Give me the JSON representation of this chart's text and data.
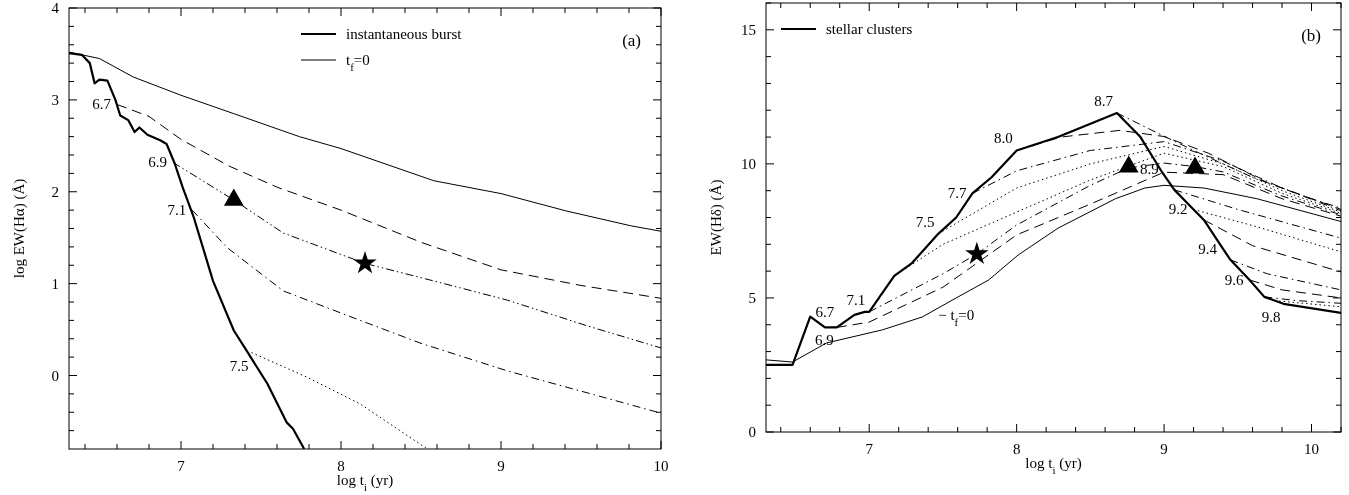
{
  "chart_data": [
    {
      "type": "line",
      "title": "(a)",
      "xlabel": "log t$_{i}$ (yr)",
      "ylabel": "log EW(Hα)   (Å)",
      "xlim": [
        6.3,
        10
      ],
      "ylim": [
        -0.8,
        4
      ],
      "xticks": [
        {
          "value": 6.4,
          "label": null
        },
        {
          "value": 6.6,
          "label": null
        },
        {
          "value": 6.8,
          "label": null
        },
        7,
        {
          "value": 7.2,
          "label": null
        },
        {
          "value": 7.4,
          "label": null
        },
        {
          "value": 7.6,
          "label": null
        },
        {
          "value": 7.8,
          "label": null
        },
        8,
        {
          "value": 8.2,
          "label": null
        },
        {
          "value": 8.4,
          "label": null
        },
        {
          "value": 8.6,
          "label": null
        },
        {
          "value": 8.8,
          "label": null
        },
        9,
        {
          "value": 9.2,
          "label": null
        },
        {
          "value": 9.4,
          "label": null
        },
        {
          "value": 9.6,
          "label": null
        },
        {
          "value": 9.8,
          "label": null
        },
        10
      ],
      "yticks": [
        {
          "value": -0.6,
          "label": null
        },
        {
          "value": -0.4,
          "label": null
        },
        {
          "value": -0.2,
          "label": null
        },
        0,
        {
          "value": 0.2,
          "label": null
        },
        {
          "value": 0.4,
          "label": null
        },
        {
          "value": 0.6,
          "label": null
        },
        {
          "value": 0.8,
          "label": null
        },
        1,
        {
          "value": 1.2,
          "label": null
        },
        {
          "value": 1.4,
          "label": null
        },
        {
          "value": 1.6,
          "label": null
        },
        {
          "value": 1.8,
          "label": null
        },
        2,
        {
          "value": 2.2,
          "label": null
        },
        {
          "value": 2.4,
          "label": null
        },
        {
          "value": 2.6,
          "label": null
        },
        {
          "value": 2.8,
          "label": null
        },
        3,
        {
          "value": 3.2,
          "label": null
        },
        {
          "value": 3.4,
          "label": null
        },
        {
          "value": 3.6,
          "label": null
        },
        {
          "value": 3.8,
          "label": null
        },
        4
      ],
      "legend": "top right",
      "grid": false,
      "series": [
        {
          "name": "instantaneous burst",
          "color": "#000000",
          "line_style": "solid",
          "x": [
            6.3,
            6.38,
            6.43,
            6.46,
            6.49,
            6.54,
            6.59,
            6.62,
            6.67,
            6.71,
            6.74,
            6.79,
            6.87,
            6.91,
            6.96,
            7.01,
            7.08,
            7.2,
            7.33,
            7.41,
            7.54,
            7.66,
            7.7,
            7.77
          ],
          "values": [
            3.51,
            3.49,
            3.4,
            3.18,
            3.22,
            3.21,
            3.0,
            2.83,
            2.78,
            2.65,
            2.7,
            2.62,
            2.56,
            2.52,
            2.31,
            2.05,
            1.72,
            1.03,
            0.49,
            0.27,
            -0.09,
            -0.51,
            -0.58,
            -0.8
          ]
        },
        {
          "name": "t$_{f}$=0",
          "color": "#000000",
          "line_style": "solid",
          "x": [
            6.3,
            6.49,
            6.7,
            7.0,
            7.33,
            7.74,
            8.0,
            8.58,
            9.0,
            9.41,
            9.81,
            10
          ],
          "values": [
            3.52,
            3.45,
            3.25,
            3.05,
            2.85,
            2.6,
            2.47,
            2.12,
            1.98,
            1.79,
            1.63,
            1.57
          ]
        },
        {
          "color": "#000000",
          "line_style": "dashed",
          "x": [
            6.6,
            6.8,
            7.0,
            7.3,
            7.6,
            8.0,
            8.5,
            9.0,
            9.5,
            10
          ],
          "values": [
            2.95,
            2.82,
            2.57,
            2.28,
            2.05,
            1.8,
            1.45,
            1.15,
            0.98,
            0.84
          ]
        },
        {
          "color": "#000000",
          "line_style": "dashdotdot",
          "x": [
            6.95,
            7.33,
            7.64,
            8.15,
            8.6,
            9.04,
            9.54,
            10
          ],
          "values": [
            2.32,
            1.91,
            1.55,
            1.22,
            1.02,
            0.82,
            0.54,
            0.3
          ]
        },
        {
          "color": "#000000",
          "line_style": "dashdot",
          "x": [
            7.07,
            7.29,
            7.64,
            8.12,
            8.5,
            9.04,
            9.5,
            10
          ],
          "values": [
            1.8,
            1.39,
            0.92,
            0.6,
            0.35,
            0.05,
            -0.17,
            -0.41
          ]
        },
        {
          "color": "#000000",
          "line_style": "dotted",
          "x": [
            7.44,
            7.79,
            8.12,
            8.54
          ],
          "values": [
            0.25,
            -0.02,
            -0.31,
            -0.8
          ]
        },
        {
          "type": "scatter",
          "marker": "triangle",
          "color": "#000000",
          "x": [
            7.33
          ],
          "values": [
            1.91
          ]
        },
        {
          "type": "scatter",
          "marker": "star",
          "color": "#000000",
          "x": [
            8.15
          ],
          "values": [
            1.22
          ]
        }
      ],
      "annotations": [
        {
          "text": "6.7",
          "x": 6.6,
          "y": 2.95
        },
        {
          "text": "6.9",
          "x": 6.95,
          "y": 2.32
        },
        {
          "text": "7.1",
          "x": 7.07,
          "y": 1.8
        },
        {
          "text": "7.5",
          "x": 7.44,
          "y": 0.25
        }
      ]
    },
    {
      "type": "line",
      "title": "(b)",
      "xlabel": "log t$_{i}$ (yr)",
      "ylabel": "EW(Hδ)   (Å)",
      "xlim": [
        6.3,
        10.2
      ],
      "ylim": [
        0,
        16
      ],
      "xticks": [
        {
          "value": 6.4,
          "label": null
        },
        {
          "value": 6.6,
          "label": null
        },
        {
          "value": 6.8,
          "label": null
        },
        7,
        {
          "value": 7.2,
          "label": null
        },
        {
          "value": 7.4,
          "label": null
        },
        {
          "value": 7.6,
          "label": null
        },
        {
          "value": 7.8,
          "label": null
        },
        8,
        {
          "value": 8.2,
          "label": null
        },
        {
          "value": 8.4,
          "label": null
        },
        {
          "value": 8.6,
          "label": null
        },
        {
          "value": 8.8,
          "label": null
        },
        9,
        {
          "value": 9.2,
          "label": null
        },
        {
          "value": 9.4,
          "label": null
        },
        {
          "value": 9.6,
          "label": null
        },
        {
          "value": 9.8,
          "label": null
        },
        10,
        {
          "value": 10.2,
          "label": null
        }
      ],
      "yticks": [
        0,
        {
          "value": 1,
          "label": null
        },
        {
          "value": 2,
          "label": null
        },
        {
          "value": 3,
          "label": null
        },
        {
          "value": 4,
          "label": null
        },
        5,
        {
          "value": 6,
          "label": null
        },
        {
          "value": 7,
          "label": null
        },
        {
          "value": 8,
          "label": null
        },
        {
          "value": 9,
          "label": null
        },
        10,
        {
          "value": 11,
          "label": null
        },
        {
          "value": 12,
          "label": null
        },
        {
          "value": 13,
          "label": null
        },
        {
          "value": 14,
          "label": null
        },
        15,
        {
          "value": 16,
          "label": null
        }
      ],
      "legend": "top left",
      "grid": false,
      "series": [
        {
          "name": "stellar clusters",
          "color": "#000000",
          "line_style": "solid",
          "x": [
            6.3,
            6.48,
            6.6,
            6.7,
            6.78,
            6.9,
            6.97,
            7.0,
            7.17,
            7.29,
            7.47,
            7.59,
            7.7,
            7.83,
            8.0,
            8.28,
            8.68,
            8.84,
            8.9,
            8.99,
            9.07,
            9.2,
            9.27,
            9.4,
            9.45,
            9.58,
            9.68,
            9.81,
            10.2
          ],
          "values": [
            2.5,
            2.5,
            4.3,
            3.9,
            3.9,
            4.37,
            4.48,
            4.48,
            5.82,
            6.3,
            7.4,
            8.0,
            8.9,
            9.5,
            10.5,
            11.0,
            11.9,
            11.0,
            10.46,
            9.66,
            9.03,
            8.3,
            7.91,
            6.83,
            6.42,
            5.67,
            5.04,
            4.78,
            4.44
          ]
        },
        {
          "color": "#000000",
          "line_style": "solid",
          "x": [
            6.3,
            6.48,
            6.71,
            7.09,
            7.36,
            7.59,
            7.81,
            8.01,
            8.28,
            8.67,
            8.87,
            9.0,
            9.27,
            9.63,
            10.2
          ],
          "values": [
            2.69,
            2.61,
            3.32,
            3.81,
            4.29,
            5.0,
            5.67,
            6.6,
            7.6,
            8.7,
            9.1,
            9.2,
            9.1,
            8.7,
            7.85
          ]
        },
        {
          "color": "#000000",
          "line_style": "dashdot",
          "x": [
            8.68,
            8.9,
            9.2,
            9.6,
            10.0,
            10.2
          ],
          "values": [
            11.9,
            11.3,
            10.5,
            9.5,
            8.7,
            8.35
          ]
        },
        {
          "color": "#000000",
          "line_style": "dashed",
          "x": [
            8.0,
            8.3,
            8.7,
            9.0,
            9.3,
            9.7,
            10.2
          ],
          "values": [
            10.5,
            11.0,
            11.25,
            11.02,
            10.4,
            9.3,
            8.3
          ]
        },
        {
          "color": "#000000",
          "line_style": "dashdot",
          "x": [
            7.7,
            8.0,
            8.5,
            9.0,
            9.4,
            9.8,
            10.2
          ],
          "values": [
            8.9,
            9.74,
            10.5,
            10.83,
            10.1,
            9.1,
            8.25
          ]
        },
        {
          "color": "#000000",
          "line_style": "dotted",
          "x": [
            7.47,
            8.0,
            8.5,
            9.0,
            9.4,
            9.8,
            10.2
          ],
          "values": [
            7.4,
            9.1,
            10.0,
            10.65,
            10.0,
            9.0,
            8.2
          ]
        },
        {
          "color": "#000000",
          "line_style": "dotted",
          "x": [
            7.17,
            7.5,
            8.0,
            8.5,
            9.0,
            9.4,
            9.8,
            10.2
          ],
          "values": [
            5.82,
            7.0,
            8.2,
            9.4,
            10.4,
            9.9,
            8.9,
            8.15
          ]
        },
        {
          "color": "#000000",
          "line_style": "dashdot",
          "x": [
            7.0,
            7.5,
            7.73,
            8.0,
            8.5,
            8.76,
            9.0,
            9.21,
            9.4,
            9.8,
            10.2
          ],
          "values": [
            4.48,
            5.9,
            6.64,
            7.72,
            9.2,
            9.85,
            10.03,
            9.9,
            9.7,
            8.8,
            8.1
          ]
        },
        {
          "color": "#000000",
          "line_style": "dashed",
          "x": [
            6.78,
            7.0,
            7.5,
            8.0,
            8.5,
            9.0,
            9.4,
            9.8,
            10.2
          ],
          "values": [
            3.9,
            4.1,
            5.4,
            7.35,
            8.5,
            9.69,
            9.6,
            8.7,
            8.05
          ]
        },
        {
          "color": "#000000",
          "line_style": "dashdot",
          "x": [
            9.07,
            9.5,
            10.2
          ],
          "values": [
            9.03,
            8.3,
            7.23
          ]
        },
        {
          "color": "#000000",
          "line_style": "dotted",
          "x": [
            9.2,
            9.6,
            10.2
          ],
          "values": [
            8.3,
            7.7,
            6.72
          ]
        },
        {
          "color": "#000000",
          "line_style": "dashed",
          "x": [
            9.27,
            9.6,
            10.2
          ],
          "values": [
            7.91,
            6.95,
            5.97
          ]
        },
        {
          "color": "#000000",
          "line_style": "dashdot",
          "x": [
            9.45,
            9.7,
            10.2
          ],
          "values": [
            6.42,
            5.9,
            5.3
          ]
        },
        {
          "color": "#000000",
          "line_style": "dashed",
          "x": [
            9.58,
            9.8,
            10.2
          ],
          "values": [
            5.67,
            5.3,
            5.0
          ]
        },
        {
          "color": "#000000",
          "line_style": "dashdot",
          "x": [
            9.68,
            9.9,
            10.2
          ],
          "values": [
            5.04,
            4.9,
            4.8
          ]
        },
        {
          "color": "#000000",
          "line_style": "dotted",
          "x": [
            9.75,
            10.2
          ],
          "values": [
            4.9,
            4.67
          ]
        },
        {
          "type": "scatter",
          "marker": "triangle",
          "color": "#000000",
          "x": [
            8.76,
            9.21
          ],
          "values": [
            9.89,
            9.85
          ]
        },
        {
          "type": "scatter",
          "marker": "star",
          "color": "#000000",
          "x": [
            7.73
          ],
          "values": [
            6.64
          ]
        }
      ],
      "annotations": [
        {
          "text": "6.7",
          "x": 6.7,
          "y": 3.9
        },
        {
          "text": "6.9",
          "x": 6.78,
          "y": 3.9
        },
        {
          "text": "7.1",
          "x": 7.0,
          "y": 4.48
        },
        {
          "text": "7.5",
          "x": 7.47,
          "y": 7.4
        },
        {
          "text": "7.7",
          "x": 7.7,
          "y": 8.9
        },
        {
          "text": "8.0",
          "x": 8.0,
          "y": 10.5
        },
        {
          "text": "8.7",
          "x": 8.68,
          "y": 11.9
        },
        {
          "text": "8.9",
          "x": 8.9,
          "y": 10.46
        },
        {
          "text": "9.2",
          "x": 9.2,
          "y": 8.3
        },
        {
          "text": "9.4",
          "x": 9.4,
          "y": 6.83
        },
        {
          "text": "9.6",
          "x": 9.58,
          "y": 5.67
        },
        {
          "text": "9.8",
          "x": 9.81,
          "y": 4.78
        },
        {
          "text": "− t$_{f}$=0",
          "x": 7.59,
          "y": 5.0
        }
      ]
    }
  ]
}
